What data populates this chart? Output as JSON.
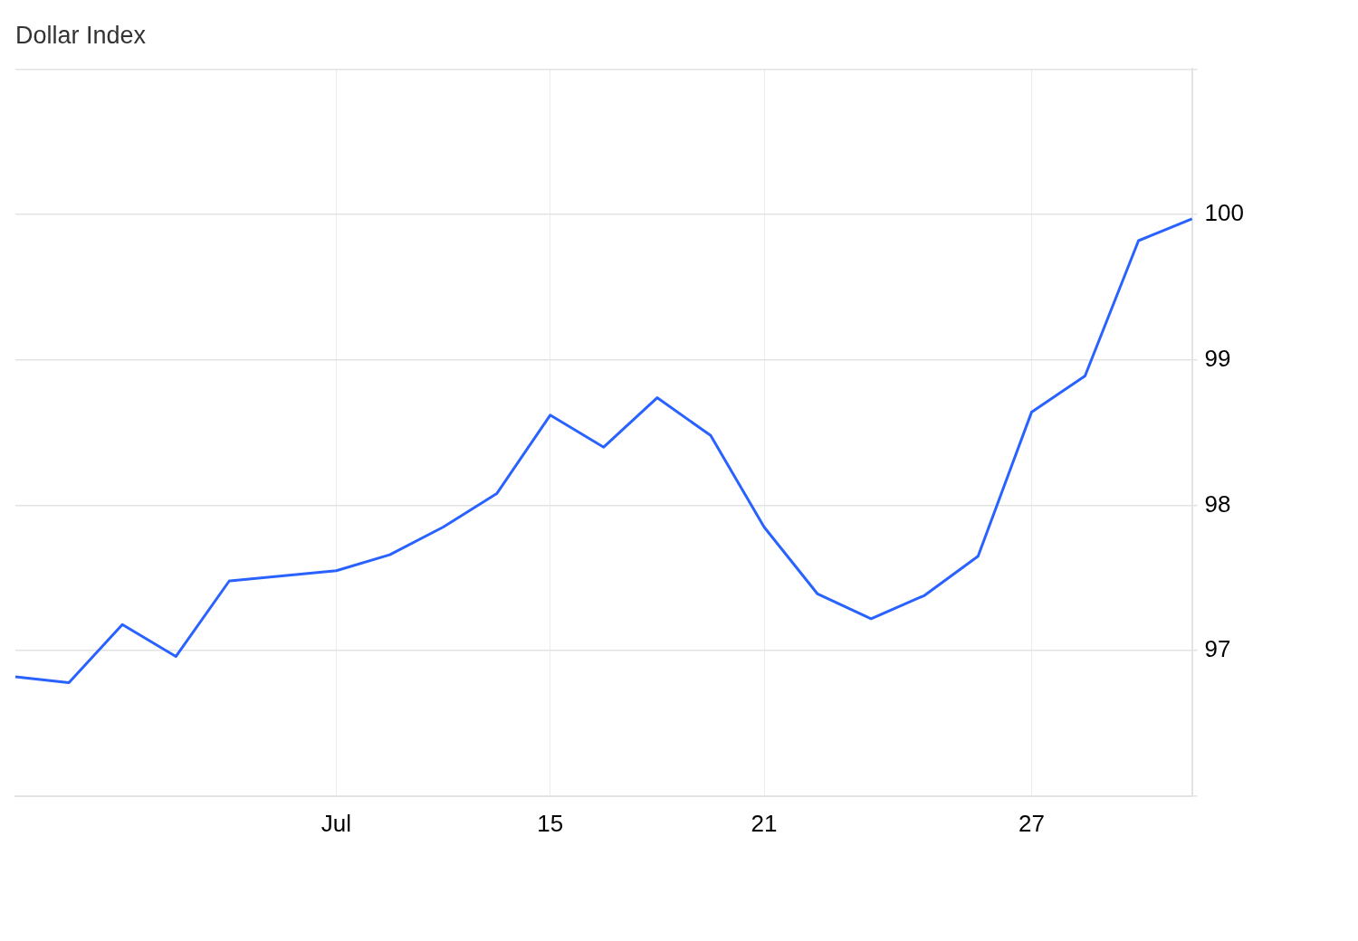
{
  "chart_data": {
    "type": "line",
    "title": "Dollar Index",
    "categories": [
      null,
      null,
      null,
      null,
      null,
      null,
      "Jul",
      null,
      null,
      null,
      "15",
      null,
      null,
      null,
      "21",
      null,
      null,
      null,
      null,
      "27",
      null,
      null,
      null
    ],
    "series": [
      {
        "color": "#2962ff",
        "values": [
          96.82,
          96.78,
          97.18,
          96.96,
          97.48,
          null,
          97.55,
          97.66,
          97.85,
          98.08,
          98.62,
          98.4,
          98.74,
          98.48,
          97.85,
          97.39,
          97.22,
          97.38,
          97.65,
          98.64,
          98.89,
          99.82,
          99.97
        ]
      }
    ],
    "ylim": [
      96,
      101
    ],
    "yticks": [
      {
        "value": 96,
        "label": null
      },
      97,
      98,
      99,
      100,
      {
        "value": 101,
        "label": null
      }
    ],
    "grid": true,
    "marker": "none"
  }
}
